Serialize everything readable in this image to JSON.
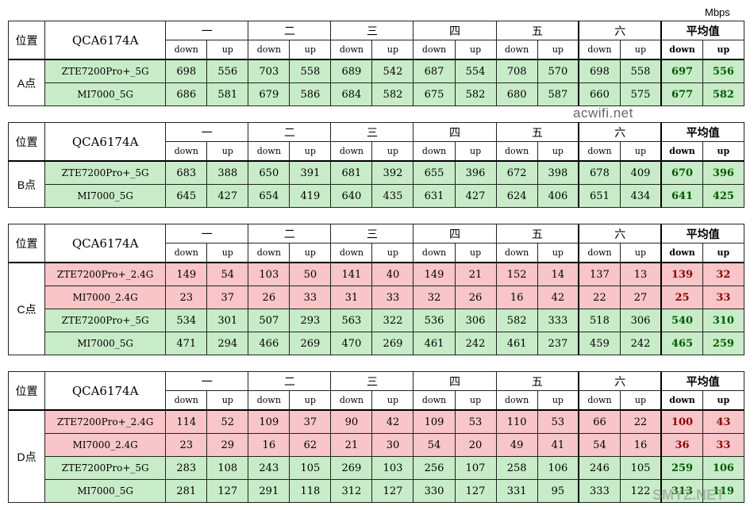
{
  "unit": "Mbps",
  "watermarks": [
    "acwifi.net",
    "SMYZ.NET"
  ],
  "header": {
    "position_label": "位置",
    "chip_label": "QCA6174A",
    "groups": [
      "一",
      "二",
      "三",
      "四",
      "五",
      "六",
      "平均值"
    ],
    "down": "down",
    "up": "up"
  },
  "blocks": [
    {
      "location": "A点",
      "rows": [
        {
          "device": "ZTE7200Pro+_5G",
          "color": "green",
          "values": [
            "698",
            "556",
            "703",
            "558",
            "689",
            "542",
            "687",
            "554",
            "708",
            "570",
            "698",
            "558",
            "697",
            "556"
          ]
        },
        {
          "device": "MI7000_5G",
          "color": "green",
          "values": [
            "686",
            "581",
            "679",
            "586",
            "684",
            "582",
            "675",
            "582",
            "680",
            "587",
            "660",
            "575",
            "677",
            "582"
          ]
        }
      ]
    },
    {
      "location": "B点",
      "rows": [
        {
          "device": "ZTE7200Pro+_5G",
          "color": "green",
          "values": [
            "683",
            "388",
            "650",
            "391",
            "681",
            "392",
            "655",
            "396",
            "672",
            "398",
            "678",
            "409",
            "670",
            "396"
          ]
        },
        {
          "device": "MI7000_5G",
          "color": "green",
          "values": [
            "645",
            "427",
            "654",
            "419",
            "640",
            "435",
            "631",
            "427",
            "624",
            "406",
            "651",
            "434",
            "641",
            "425"
          ]
        }
      ]
    },
    {
      "location": "C点",
      "rows": [
        {
          "device": "ZTE7200Pro+_2.4G",
          "color": "red",
          "values": [
            "149",
            "54",
            "103",
            "50",
            "141",
            "40",
            "149",
            "21",
            "152",
            "14",
            "137",
            "13",
            "139",
            "32"
          ]
        },
        {
          "device": "MI7000_2.4G",
          "color": "red",
          "values": [
            "23",
            "37",
            "26",
            "33",
            "31",
            "33",
            "32",
            "26",
            "16",
            "42",
            "22",
            "27",
            "25",
            "33"
          ]
        },
        {
          "device": "ZTE7200Pro+_5G",
          "color": "green",
          "values": [
            "534",
            "301",
            "507",
            "293",
            "563",
            "322",
            "536",
            "306",
            "582",
            "333",
            "518",
            "306",
            "540",
            "310"
          ]
        },
        {
          "device": "MI7000_5G",
          "color": "green",
          "values": [
            "471",
            "294",
            "466",
            "269",
            "470",
            "269",
            "461",
            "242",
            "461",
            "237",
            "459",
            "242",
            "465",
            "259"
          ]
        }
      ]
    },
    {
      "location": "D点",
      "rows": [
        {
          "device": "ZTE7200Pro+_2.4G",
          "color": "red",
          "values": [
            "114",
            "52",
            "109",
            "37",
            "90",
            "42",
            "109",
            "53",
            "110",
            "53",
            "66",
            "22",
            "100",
            "43"
          ]
        },
        {
          "device": "MI7000_2.4G",
          "color": "red",
          "values": [
            "23",
            "29",
            "16",
            "62",
            "21",
            "30",
            "54",
            "20",
            "49",
            "41",
            "54",
            "16",
            "36",
            "33"
          ]
        },
        {
          "device": "ZTE7200Pro+_5G",
          "color": "green",
          "values": [
            "283",
            "108",
            "243",
            "105",
            "269",
            "103",
            "256",
            "107",
            "258",
            "106",
            "246",
            "105",
            "259",
            "106"
          ]
        },
        {
          "device": "MI7000_5G",
          "color": "green",
          "values": [
            "281",
            "127",
            "291",
            "118",
            "312",
            "127",
            "330",
            "127",
            "331",
            "95",
            "333",
            "122",
            "313",
            "119"
          ]
        }
      ]
    }
  ],
  "colors": {
    "green": "#c8ecc8",
    "red": "#f8c5c8"
  }
}
